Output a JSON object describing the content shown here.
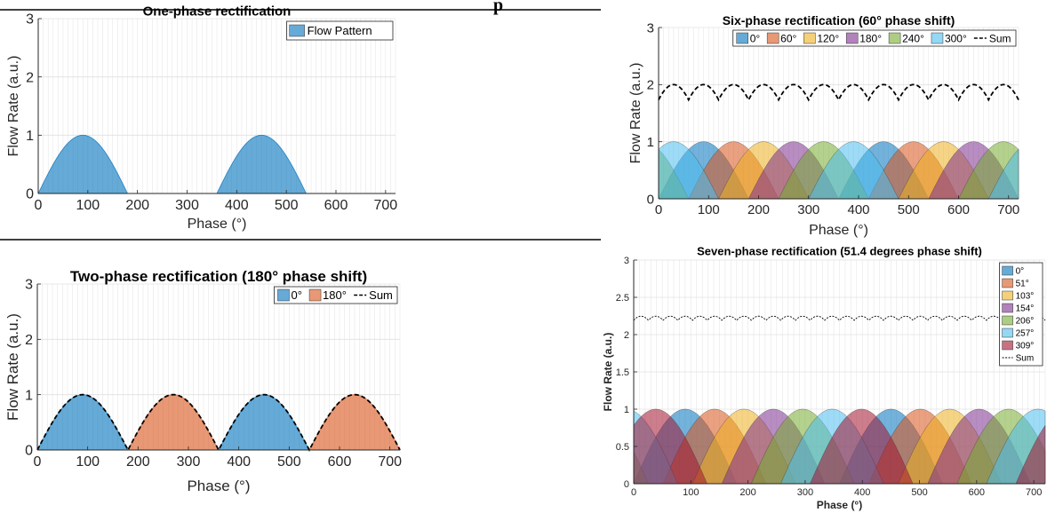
{
  "header_fragment": "p",
  "chart_data": [
    {
      "type": "area",
      "title": "One-phase rectification",
      "xlabel": "Phase (°)",
      "ylabel": "Flow Rate (a.u.)",
      "xlim": [
        0,
        720
      ],
      "ylim": [
        0,
        3
      ],
      "xticks": [
        "0",
        "100",
        "200",
        "300",
        "400",
        "500",
        "600",
        "700"
      ],
      "yticks": [
        "0",
        "1",
        "2",
        "3"
      ],
      "grid": true,
      "legend_position": "top-right",
      "legend_layout": "vertical",
      "phase_shift_deg": 360,
      "series": [
        {
          "name": "Flow Pattern",
          "offset_deg": 0,
          "color": "#0072BD"
        }
      ],
      "sum": null
    },
    {
      "type": "area",
      "title": "Six-phase rectification (60° phase shift)",
      "xlabel": "Phase (°)",
      "ylabel": "Flow Rate (a.u.)",
      "xlim": [
        0,
        720
      ],
      "ylim": [
        0,
        3
      ],
      "xticks": [
        "0",
        "100",
        "200",
        "300",
        "400",
        "500",
        "600",
        "700"
      ],
      "yticks": [
        "0",
        "1",
        "2",
        "3"
      ],
      "grid": true,
      "legend_position": "top-right",
      "legend_layout": "horizontal",
      "phase_shift_deg": 60,
      "series": [
        {
          "name": "0°",
          "offset_deg": 0,
          "color": "#0072BD"
        },
        {
          "name": "60°",
          "offset_deg": 60,
          "color": "#D95319"
        },
        {
          "name": "120°",
          "offset_deg": 120,
          "color": "#EDB120"
        },
        {
          "name": "180°",
          "offset_deg": 180,
          "color": "#7E2F8E"
        },
        {
          "name": "240°",
          "offset_deg": 240,
          "color": "#77AC30"
        },
        {
          "name": "300°",
          "offset_deg": 300,
          "color": "#4DBEEE"
        }
      ],
      "sum": {
        "name": "Sum",
        "style": "dashed",
        "approx_range": [
          1.73,
          2.0
        ]
      }
    },
    {
      "type": "area",
      "title": "Two-phase rectification (180° phase shift)",
      "xlabel": "Phase (°)",
      "ylabel": "Flow Rate (a.u.)",
      "xlim": [
        0,
        720
      ],
      "ylim": [
        0,
        3
      ],
      "xticks": [
        "0",
        "100",
        "200",
        "300",
        "400",
        "500",
        "600",
        "700"
      ],
      "yticks": [
        "0",
        "1",
        "2",
        "3"
      ],
      "grid": true,
      "legend_position": "top-right",
      "legend_layout": "horizontal",
      "phase_shift_deg": 180,
      "series": [
        {
          "name": "0°",
          "offset_deg": 0,
          "color": "#0072BD"
        },
        {
          "name": "180°",
          "offset_deg": 180,
          "color": "#D95319"
        }
      ],
      "sum": {
        "name": "Sum",
        "style": "dashed",
        "approx_range": [
          0,
          1.0
        ]
      }
    },
    {
      "type": "area",
      "title": "Seven-phase rectification (51.4 degrees phase shift)",
      "xlabel": "Phase (°)",
      "ylabel": "Flow Rate (a.u.)",
      "xlim": [
        0,
        720
      ],
      "ylim": [
        0,
        3
      ],
      "xticks": [
        "0",
        "100",
        "200",
        "300",
        "400",
        "500",
        "600",
        "700"
      ],
      "yticks": [
        "0",
        "0.5",
        "1",
        "1.5",
        "2",
        "2.5",
        "3"
      ],
      "grid": true,
      "legend_position": "top-right",
      "legend_layout": "vertical",
      "phase_shift_deg": 51.43,
      "series": [
        {
          "name": "0°",
          "offset_deg": 0,
          "color": "#0072BD"
        },
        {
          "name": "51°",
          "offset_deg": 51.43,
          "color": "#D95319"
        },
        {
          "name": "103°",
          "offset_deg": 102.86,
          "color": "#EDB120"
        },
        {
          "name": "154°",
          "offset_deg": 154.29,
          "color": "#7E2F8E"
        },
        {
          "name": "206°",
          "offset_deg": 205.71,
          "color": "#77AC30"
        },
        {
          "name": "257°",
          "offset_deg": 257.14,
          "color": "#4DBEEE"
        },
        {
          "name": "309°",
          "offset_deg": 308.57,
          "color": "#A2142F"
        }
      ],
      "sum": {
        "name": "Sum",
        "style": "dotted",
        "approx_range": [
          2.19,
          2.25
        ]
      }
    }
  ]
}
